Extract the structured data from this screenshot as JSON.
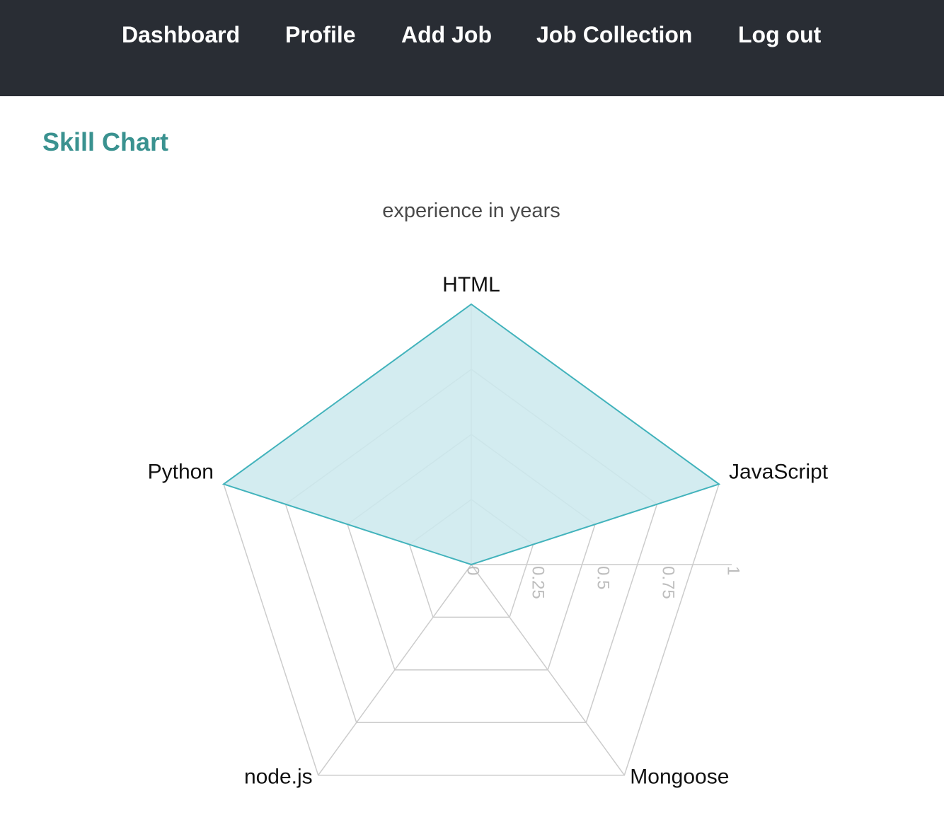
{
  "nav": {
    "items": [
      {
        "label": "Dashboard"
      },
      {
        "label": "Profile"
      },
      {
        "label": "Add Job"
      },
      {
        "label": "Job Collection"
      },
      {
        "label": "Log out"
      }
    ]
  },
  "page": {
    "title": "Skill Chart"
  },
  "colors": {
    "navbar": "#292d34",
    "accent": "#3a9290",
    "series_stroke": "#42b3bc",
    "series_fill": "#cbe9ed",
    "grid": "#cccccc"
  },
  "chart_data": {
    "type": "radar",
    "title": "experience in years",
    "categories": [
      "HTML",
      "JavaScript",
      "Mongoose",
      "node.js",
      "Python"
    ],
    "series": [
      {
        "values": [
          1,
          1,
          0,
          0,
          1
        ]
      }
    ],
    "range": [
      0,
      1
    ],
    "ticks": [
      "0",
      "0.25",
      "0.5",
      "0.75",
      "1"
    ],
    "grid": true,
    "legend": "none"
  }
}
